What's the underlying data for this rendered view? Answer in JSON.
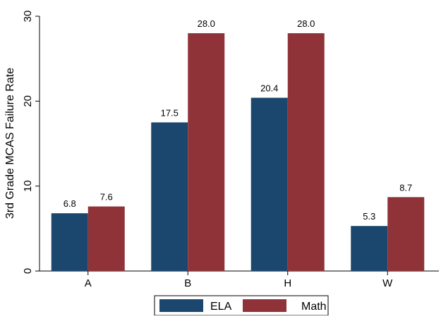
{
  "chart_data": {
    "type": "bar",
    "categories": [
      "A",
      "B",
      "H",
      "W"
    ],
    "series": [
      {
        "name": "ELA",
        "values": [
          6.8,
          17.5,
          20.4,
          5.3
        ],
        "color": "#1b466e"
      },
      {
        "name": "Math",
        "values": [
          7.6,
          28.0,
          28.0,
          8.7
        ],
        "color": "#8f3339"
      }
    ],
    "data_labels": [
      [
        "6.8",
        "17.5",
        "20.4",
        "5.3"
      ],
      [
        "7.6",
        "28.0",
        "28.0",
        "8.7"
      ]
    ],
    "title": "",
    "xlabel": "",
    "ylabel": "3rd Grade MCAS Failure Rate",
    "ylim": [
      0,
      30
    ],
    "yticks": [
      0,
      10,
      20,
      30
    ],
    "grid": false,
    "legend_position": "bottom"
  }
}
